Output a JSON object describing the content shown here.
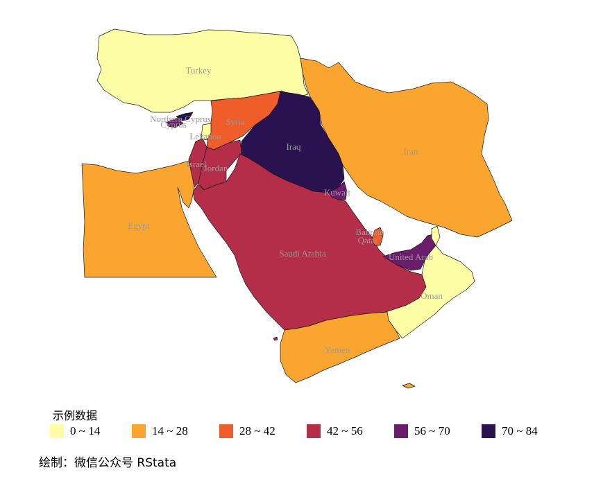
{
  "map": {
    "legend_title": "示例数据",
    "credit": "绘制：微信公众号 RStata",
    "legend": [
      {
        "label": "0 ~ 14",
        "color": "#fcfda4"
      },
      {
        "label": "14 ~ 28",
        "color": "#fba531"
      },
      {
        "label": "28 ~ 42",
        "color": "#ef5d2b"
      },
      {
        "label": "42 ~ 56",
        "color": "#b42d49"
      },
      {
        "label": "56 ~ 70",
        "color": "#6b1c6b"
      },
      {
        "label": "70 ~ 84",
        "color": "#2a1150"
      }
    ],
    "countries": [
      {
        "name": "Turkey",
        "bin": 0
      },
      {
        "name": "Iran",
        "bin": 1
      },
      {
        "name": "Egypt",
        "bin": 1
      },
      {
        "name": "Yemen",
        "bin": 1
      },
      {
        "name": "Oman",
        "bin": 0
      },
      {
        "name": "Lebanon",
        "bin": 0
      },
      {
        "name": "Syria",
        "bin": 2
      },
      {
        "name": "Saudi Arabia",
        "bin": 3
      },
      {
        "name": "Jordan",
        "bin": 3
      },
      {
        "name": "Israel",
        "bin": 3
      },
      {
        "name": "Bahrain",
        "bin": 2
      },
      {
        "name": "Qatar",
        "bin": 2
      },
      {
        "name": "Kuwait",
        "bin": 4
      },
      {
        "name": "United Arab",
        "bin": 4
      },
      {
        "name": "Cyprus",
        "bin": 4
      },
      {
        "name": "Northern Cyprus",
        "bin": 5
      },
      {
        "name": "Iraq",
        "bin": 5
      }
    ]
  }
}
